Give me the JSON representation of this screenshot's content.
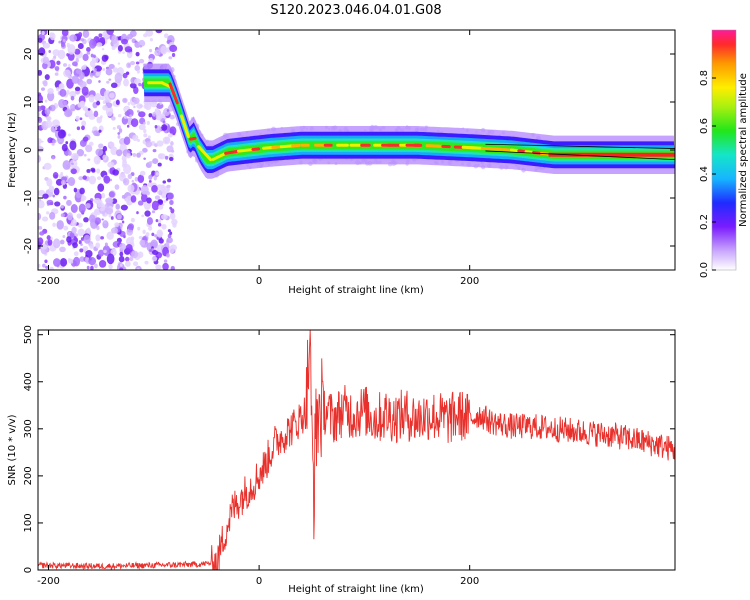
{
  "title": "S120.2023.046.04.01.G08",
  "chart_data": [
    {
      "type": "heatmap",
      "xlabel": "Height of straight line (km)",
      "ylabel": "Frequency (Hz)",
      "xlim": [
        -210,
        395
      ],
      "ylim": [
        -25,
        25
      ],
      "xticks": [
        -200,
        0,
        200
      ],
      "yticks": [
        -20,
        -10,
        0,
        10,
        20
      ],
      "colorbar": {
        "label": "Normalized spectral amplitude",
        "range": [
          0,
          1
        ],
        "ticks": [
          0.0,
          0.2,
          0.4,
          0.6,
          0.8
        ]
      },
      "ridge": {
        "description_points": [
          [
            -110,
            14
          ],
          [
            -85,
            14
          ],
          [
            -78,
            10
          ],
          [
            -72,
            6
          ],
          [
            -66,
            2
          ],
          [
            -62,
            3
          ],
          [
            -56,
            0
          ],
          [
            -50,
            -2
          ],
          [
            -44,
            -2
          ],
          [
            -30,
            -0.5
          ],
          [
            -10,
            0
          ],
          [
            10,
            0.5
          ],
          [
            40,
            1
          ],
          [
            80,
            1
          ],
          [
            150,
            1
          ],
          [
            200,
            0.5
          ],
          [
            240,
            0
          ],
          [
            280,
            -1
          ],
          [
            395,
            -1
          ]
        ]
      },
      "noise_region_x": [
        -210,
        -85
      ]
    },
    {
      "type": "line",
      "xlabel": "Height of straight line (km)",
      "ylabel": "SNR (10 * v/v)",
      "xlim": [
        -210,
        395
      ],
      "ylim": [
        0,
        510
      ],
      "xticks": [
        -200,
        0,
        200
      ],
      "yticks": [
        0,
        100,
        200,
        300,
        400,
        500
      ],
      "color": "#e8312c",
      "series": [
        {
          "x": [
            -210,
            -150,
            -100,
            -60,
            -40,
            -35,
            -25,
            -15,
            -5,
            5,
            15,
            25,
            35,
            45,
            48,
            50,
            52,
            55,
            60,
            70,
            80,
            90,
            100,
            110,
            120,
            130,
            140,
            150,
            160,
            170,
            180,
            190,
            200,
            210,
            220,
            230,
            240,
            260,
            280,
            300,
            320,
            340,
            360,
            380,
            395
          ],
          "y": [
            10,
            8,
            10,
            12,
            15,
            60,
            130,
            160,
            185,
            220,
            270,
            290,
            310,
            340,
            500,
            280,
            180,
            330,
            350,
            320,
            340,
            330,
            340,
            320,
            330,
            325,
            330,
            320,
            330,
            325,
            320,
            330,
            320,
            330,
            315,
            310,
            305,
            305,
            300,
            295,
            290,
            285,
            275,
            265,
            255
          ]
        }
      ]
    }
  ]
}
